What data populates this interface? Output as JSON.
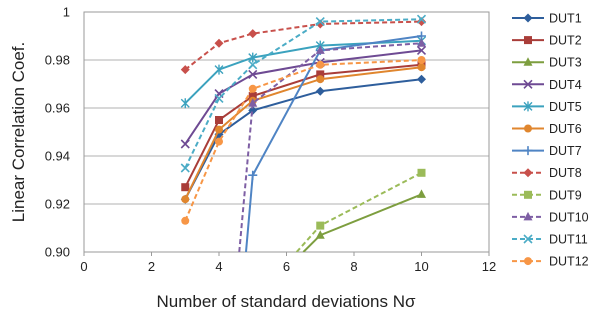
{
  "chart_data": {
    "type": "line",
    "xlabel": "Number of standard deviations Nσ",
    "ylabel": "Linear Correlation Coef.",
    "xlim": [
      0,
      12
    ],
    "ylim": [
      0.9,
      1.0
    ],
    "x_ticks": [
      0,
      2,
      4,
      6,
      8,
      10,
      12
    ],
    "y_ticks": [
      0.9,
      0.92,
      0.94,
      0.96,
      0.98,
      1
    ],
    "grid": "horizontal",
    "legend_position": "right",
    "series": [
      {
        "name": "DUT1",
        "color": "#2E5E9C",
        "marker": "diamond",
        "dashed": false,
        "points": [
          [
            3,
            0.922
          ],
          [
            4,
            0.949
          ],
          [
            5,
            0.959
          ],
          [
            7,
            0.967
          ],
          [
            10,
            0.972
          ]
        ]
      },
      {
        "name": "DUT2",
        "color": "#A93D39",
        "marker": "square",
        "dashed": false,
        "points": [
          [
            3,
            0.927
          ],
          [
            4,
            0.955
          ],
          [
            5,
            0.965
          ],
          [
            7,
            0.974
          ],
          [
            10,
            0.978
          ]
        ]
      },
      {
        "name": "DUT3",
        "color": "#7D9E3F",
        "marker": "triangle",
        "dashed": false,
        "points": [
          [
            6.5,
            0.9
          ],
          [
            7,
            0.907
          ],
          [
            10,
            0.924
          ]
        ]
      },
      {
        "name": "DUT4",
        "color": "#6E4A93",
        "marker": "x",
        "dashed": false,
        "points": [
          [
            3,
            0.945
          ],
          [
            4,
            0.966
          ],
          [
            5,
            0.974
          ],
          [
            7,
            0.979
          ],
          [
            10,
            0.984
          ]
        ]
      },
      {
        "name": "DUT5",
        "color": "#3BA2BE",
        "marker": "asterisk",
        "dashed": false,
        "points": [
          [
            3,
            0.962
          ],
          [
            4,
            0.976
          ],
          [
            5,
            0.981
          ],
          [
            7,
            0.986
          ],
          [
            10,
            0.988
          ]
        ]
      },
      {
        "name": "DUT6",
        "color": "#E0862E",
        "marker": "circle",
        "dashed": false,
        "points": [
          [
            3,
            0.922
          ],
          [
            4,
            0.951
          ],
          [
            5,
            0.963
          ],
          [
            7,
            0.972
          ],
          [
            10,
            0.977
          ]
        ]
      },
      {
        "name": "DUT7",
        "color": "#4F84C4",
        "marker": "plus",
        "dashed": false,
        "points": [
          [
            4.8,
            0.9
          ],
          [
            5,
            0.932
          ],
          [
            7,
            0.984
          ],
          [
            10,
            0.99
          ]
        ]
      },
      {
        "name": "DUT8",
        "color": "#C8504B",
        "marker": "diamond",
        "dashed": true,
        "points": [
          [
            3,
            0.976
          ],
          [
            4,
            0.987
          ],
          [
            5,
            0.991
          ],
          [
            7,
            0.995
          ],
          [
            10,
            0.996
          ]
        ]
      },
      {
        "name": "DUT9",
        "color": "#9BBB59",
        "marker": "square",
        "dashed": true,
        "points": [
          [
            6.3,
            0.9
          ],
          [
            7,
            0.911
          ],
          [
            10,
            0.933
          ]
        ]
      },
      {
        "name": "DUT10",
        "color": "#7E5FA4",
        "marker": "triangle",
        "dashed": true,
        "points": [
          [
            4.6,
            0.9
          ],
          [
            5,
            0.962
          ],
          [
            7,
            0.984
          ],
          [
            10,
            0.987
          ]
        ]
      },
      {
        "name": "DUT11",
        "color": "#4BACC6",
        "marker": "x",
        "dashed": true,
        "points": [
          [
            3,
            0.935
          ],
          [
            4,
            0.964
          ],
          [
            5,
            0.978
          ],
          [
            7,
            0.996
          ],
          [
            10,
            0.997
          ]
        ]
      },
      {
        "name": "DUT12",
        "color": "#F79646",
        "marker": "circle",
        "dashed": true,
        "points": [
          [
            3,
            0.913
          ],
          [
            4,
            0.946
          ],
          [
            5,
            0.968
          ],
          [
            7,
            0.978
          ],
          [
            10,
            0.98
          ]
        ]
      }
    ]
  }
}
